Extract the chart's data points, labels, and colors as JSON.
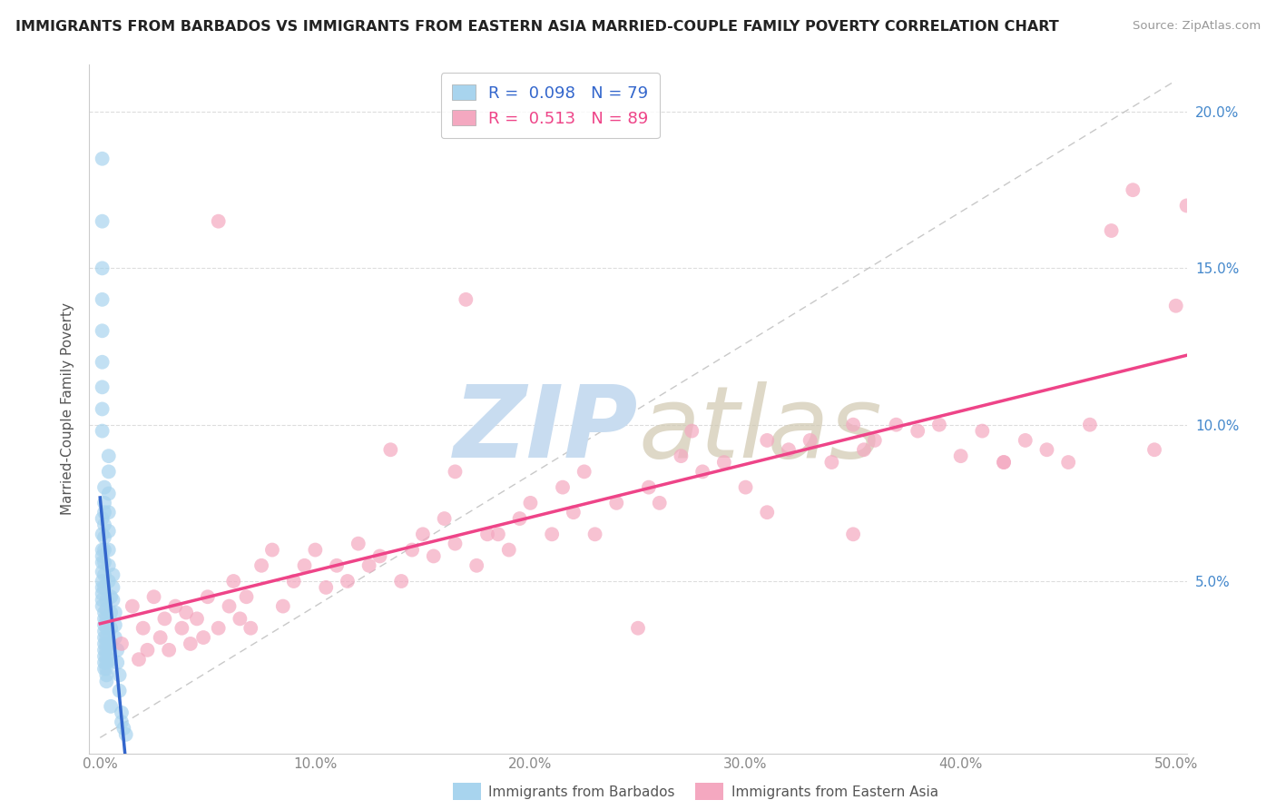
{
  "title": "IMMIGRANTS FROM BARBADOS VS IMMIGRANTS FROM EASTERN ASIA MARRIED-COUPLE FAMILY POVERTY CORRELATION CHART",
  "source": "Source: ZipAtlas.com",
  "xlabel_barbados": "Immigrants from Barbados",
  "xlabel_eastern_asia": "Immigrants from Eastern Asia",
  "ylabel": "Married-Couple Family Poverty",
  "xlim": [
    -0.005,
    0.505
  ],
  "ylim": [
    -0.005,
    0.215
  ],
  "R_barbados": 0.098,
  "N_barbados": 79,
  "R_eastern_asia": 0.513,
  "N_eastern_asia": 89,
  "color_barbados": "#A8D4EE",
  "color_eastern_asia": "#F4A8C0",
  "color_line_barbados": "#3366CC",
  "color_line_eastern_asia": "#EE4488",
  "color_diagonal": "#BBBBBB",
  "watermark_zip": "ZIP",
  "watermark_atlas": "atlas",
  "watermark_color": "#C8DCF0",
  "background_color": "#FFFFFF",
  "barbados_x": [
    0.001,
    0.001,
    0.001,
    0.001,
    0.001,
    0.001,
    0.001,
    0.001,
    0.001,
    0.001,
    0.001,
    0.001,
    0.001,
    0.001,
    0.001,
    0.001,
    0.001,
    0.001,
    0.001,
    0.001,
    0.002,
    0.002,
    0.002,
    0.002,
    0.002,
    0.002,
    0.002,
    0.002,
    0.002,
    0.002,
    0.002,
    0.002,
    0.002,
    0.002,
    0.002,
    0.002,
    0.002,
    0.002,
    0.002,
    0.003,
    0.003,
    0.003,
    0.003,
    0.003,
    0.003,
    0.003,
    0.003,
    0.003,
    0.003,
    0.003,
    0.003,
    0.004,
    0.004,
    0.004,
    0.004,
    0.004,
    0.004,
    0.004,
    0.004,
    0.005,
    0.005,
    0.005,
    0.005,
    0.005,
    0.005,
    0.006,
    0.006,
    0.006,
    0.007,
    0.007,
    0.007,
    0.008,
    0.008,
    0.009,
    0.009,
    0.01,
    0.01,
    0.011,
    0.012
  ],
  "barbados_y": [
    0.185,
    0.165,
    0.15,
    0.14,
    0.13,
    0.12,
    0.112,
    0.105,
    0.098,
    0.07,
    0.065,
    0.06,
    0.058,
    0.056,
    0.053,
    0.05,
    0.048,
    0.046,
    0.044,
    0.042,
    0.04,
    0.038,
    0.036,
    0.034,
    0.032,
    0.03,
    0.028,
    0.026,
    0.024,
    0.022,
    0.08,
    0.075,
    0.072,
    0.068,
    0.064,
    0.06,
    0.056,
    0.052,
    0.048,
    0.044,
    0.041,
    0.038,
    0.035,
    0.032,
    0.03,
    0.028,
    0.026,
    0.024,
    0.022,
    0.02,
    0.018,
    0.09,
    0.085,
    0.078,
    0.072,
    0.066,
    0.06,
    0.055,
    0.05,
    0.045,
    0.04,
    0.035,
    0.03,
    0.025,
    0.01,
    0.052,
    0.048,
    0.044,
    0.04,
    0.036,
    0.032,
    0.028,
    0.024,
    0.02,
    0.015,
    0.008,
    0.005,
    0.003,
    0.001
  ],
  "eastern_asia_x": [
    0.01,
    0.015,
    0.018,
    0.02,
    0.022,
    0.025,
    0.028,
    0.03,
    0.032,
    0.035,
    0.038,
    0.04,
    0.042,
    0.045,
    0.048,
    0.05,
    0.055,
    0.06,
    0.062,
    0.065,
    0.068,
    0.07,
    0.075,
    0.08,
    0.085,
    0.09,
    0.095,
    0.1,
    0.105,
    0.11,
    0.115,
    0.12,
    0.125,
    0.13,
    0.14,
    0.145,
    0.15,
    0.155,
    0.16,
    0.165,
    0.17,
    0.175,
    0.18,
    0.19,
    0.195,
    0.2,
    0.21,
    0.215,
    0.22,
    0.225,
    0.23,
    0.24,
    0.25,
    0.255,
    0.26,
    0.27,
    0.28,
    0.29,
    0.3,
    0.31,
    0.32,
    0.33,
    0.34,
    0.35,
    0.355,
    0.36,
    0.37,
    0.38,
    0.39,
    0.4,
    0.41,
    0.42,
    0.43,
    0.44,
    0.45,
    0.46,
    0.47,
    0.48,
    0.49,
    0.5,
    0.505,
    0.135,
    0.185,
    0.31,
    0.42,
    0.35,
    0.275,
    0.165,
    0.055
  ],
  "eastern_asia_y": [
    0.03,
    0.042,
    0.025,
    0.035,
    0.028,
    0.045,
    0.032,
    0.038,
    0.028,
    0.042,
    0.035,
    0.04,
    0.03,
    0.038,
    0.032,
    0.045,
    0.035,
    0.042,
    0.05,
    0.038,
    0.045,
    0.035,
    0.055,
    0.06,
    0.042,
    0.05,
    0.055,
    0.06,
    0.048,
    0.055,
    0.05,
    0.062,
    0.055,
    0.058,
    0.05,
    0.06,
    0.065,
    0.058,
    0.07,
    0.062,
    0.14,
    0.055,
    0.065,
    0.06,
    0.07,
    0.075,
    0.065,
    0.08,
    0.072,
    0.085,
    0.065,
    0.075,
    0.035,
    0.08,
    0.075,
    0.09,
    0.085,
    0.088,
    0.08,
    0.095,
    0.092,
    0.095,
    0.088,
    0.1,
    0.092,
    0.095,
    0.1,
    0.098,
    0.1,
    0.09,
    0.098,
    0.088,
    0.095,
    0.092,
    0.088,
    0.1,
    0.162,
    0.175,
    0.092,
    0.138,
    0.17,
    0.092,
    0.065,
    0.072,
    0.088,
    0.065,
    0.098,
    0.085,
    0.165
  ]
}
